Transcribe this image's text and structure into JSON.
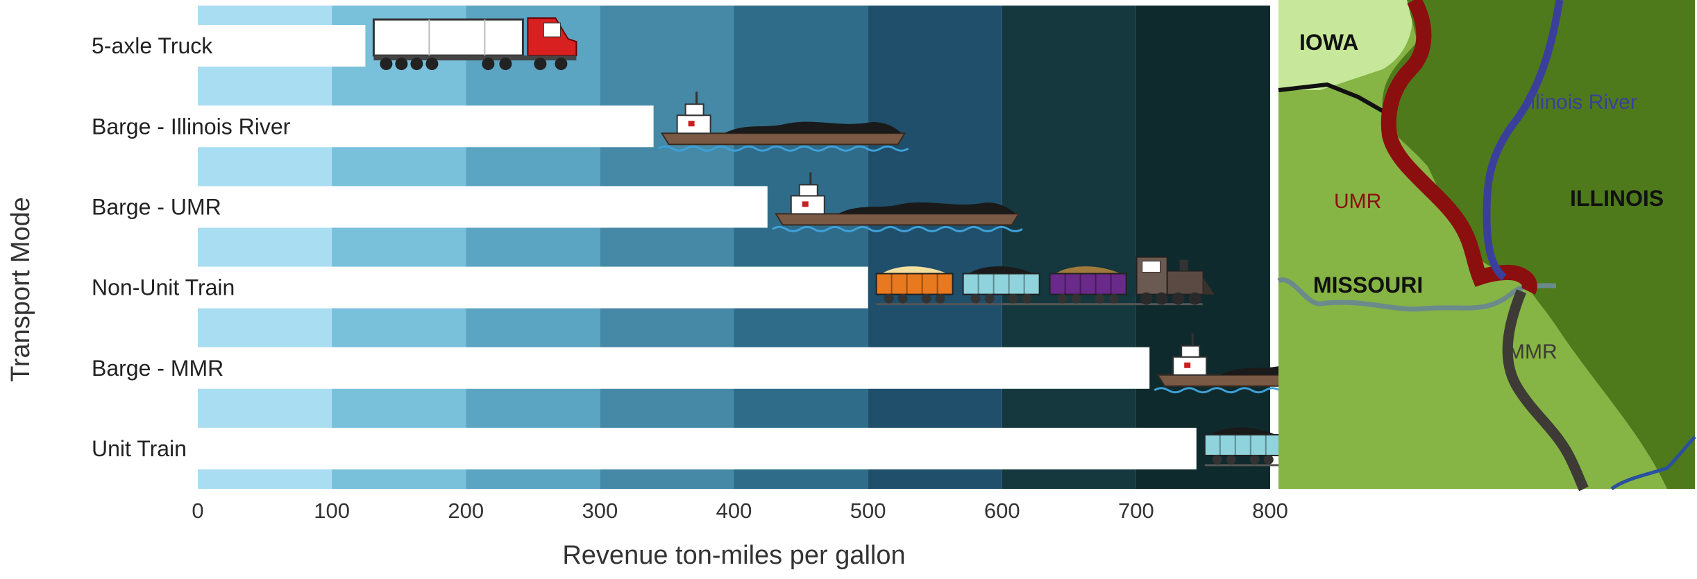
{
  "chart_data": {
    "type": "bar",
    "orientation": "horizontal",
    "title": "",
    "xlabel": "Revenue ton-miles per gallon",
    "ylabel": "Transport Mode",
    "xlim": [
      0,
      800
    ],
    "xticks": [
      0,
      100,
      200,
      300,
      400,
      500,
      600,
      700,
      800
    ],
    "categories": [
      "5-axle Truck",
      "Barge - Illinois River",
      "Barge - UMR",
      "Non-Unit Train",
      "Barge -  MMR",
      "Unit Train"
    ],
    "values": [
      125,
      340,
      425,
      500,
      710,
      745
    ],
    "bar_color": "#ffffff",
    "background_bands": [
      "#a9ddf2",
      "#79c0db",
      "#5ba4c2",
      "#4589a6",
      "#2f6c89",
      "#1f4f6b",
      "#15383f",
      "#0f2a2c"
    ],
    "icons": [
      "truck-icon",
      "barge-icon",
      "barge-icon",
      "mixed-freight-train-icon",
      "barge-icon",
      "coal-unit-train-icon"
    ]
  },
  "map": {
    "labels": {
      "iowa": "IOWA",
      "illinois": "ILLINOIS",
      "missouri": "MISSOURI",
      "illinois_river": "Illinois River",
      "umr": "UMR",
      "mmr": "MMR"
    },
    "colors": {
      "iowa": "#c7e89a",
      "illinois": "#4e7a1c",
      "missouri": "#86b445",
      "umr": "#8b0f0f",
      "illinois_river": "#3b3f9c",
      "mmr": "#3e3a36",
      "missouri_river": "#6b8a8c"
    }
  }
}
